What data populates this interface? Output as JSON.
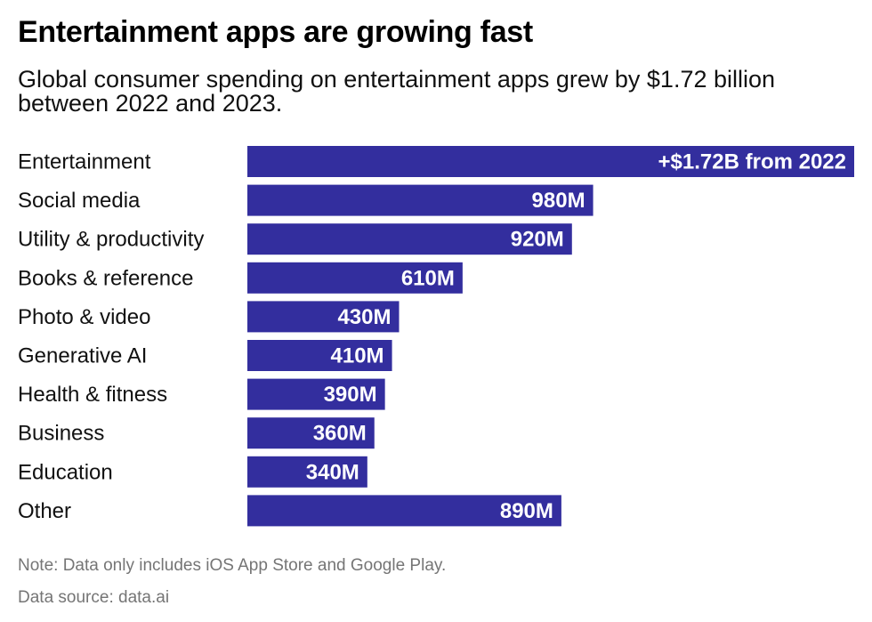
{
  "header": {
    "title": "Entertainment apps are growing fast",
    "subtitle": "Global consumer spending on entertainment apps grew by $1.72 billion between 2022 and 2023."
  },
  "chart_data": {
    "type": "bar",
    "orientation": "horizontal",
    "title": "Entertainment apps are growing fast",
    "subtitle": "Global consumer spending on entertainment apps grew by $1.72 billion between 2022 and 2023.",
    "xlabel": "",
    "ylabel": "",
    "unit": "USD millions (growth 2022 to 2023)",
    "categories": [
      "Entertainment",
      "Social media",
      "Utility & productivity",
      "Books & reference",
      "Photo & video",
      "Generative AI",
      "Health & fitness",
      "Business",
      "Education",
      "Other"
    ],
    "values": [
      1720,
      980,
      920,
      610,
      430,
      410,
      390,
      360,
      340,
      890
    ],
    "data_labels": [
      "+$1.72B from 2022",
      "980M",
      "920M",
      "610M",
      "430M",
      "410M",
      "390M",
      "360M",
      "340M",
      "890M"
    ],
    "xlim": [
      0,
      1720
    ],
    "grid": false,
    "legend": "none",
    "bar_color": "#332e9e",
    "label_color": "#ffffff"
  },
  "footer": {
    "note": "Note: Data only includes iOS App Store and Google Play.",
    "source": "Data source: data.ai"
  }
}
